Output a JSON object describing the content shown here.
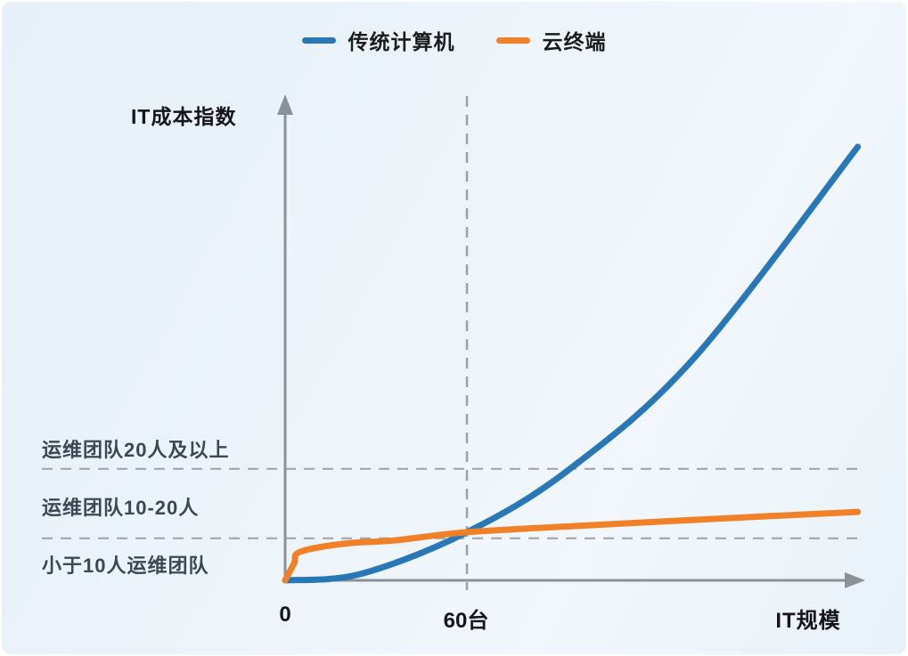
{
  "chart_data": {
    "type": "line",
    "title": "",
    "xlabel": "IT规模",
    "ylabel": "IT成本指数",
    "x_unit": "台",
    "x_ticks": [
      {
        "value": 0,
        "label": "0"
      },
      {
        "value": 60,
        "label": "60台"
      }
    ],
    "ylim": [
      0,
      100
    ],
    "xlim": [
      0,
      189
    ],
    "grid": "dashed-guides-only",
    "legend_position": "top-center",
    "series": [
      {
        "name": "传统计算机",
        "color": "#2878b8",
        "points": [
          [
            0,
            0
          ],
          [
            25,
            1.5
          ],
          [
            60,
            11.1
          ],
          [
            94,
            25.7
          ],
          [
            135,
            51.3
          ],
          [
            189,
            100
          ]
        ]
      },
      {
        "name": "云终端",
        "color": "#f08128",
        "points": [
          [
            0,
            0
          ],
          [
            3,
            4
          ],
          [
            5,
            6.6
          ],
          [
            20,
            8.5
          ],
          [
            36,
            9.2
          ],
          [
            60,
            11.1
          ],
          [
            100,
            12.7
          ],
          [
            145,
            14.3
          ],
          [
            189,
            15.8
          ]
        ]
      }
    ],
    "guides": {
      "horizontal": [
        {
          "y": 25.7
        },
        {
          "y": 9.7
        }
      ],
      "vertical": {
        "x": 60
      }
    },
    "zone_labels": [
      "运维团队20人及以上",
      "运维团队10-20人",
      "小于10人运维团队"
    ],
    "annotations_note": "curves intersect at x = 60台 on the vertical dashed guide",
    "colors": {
      "axis": "#8b9197",
      "guide": "#9ba1a7",
      "background_top": "#e7f0f8",
      "background_bottom": "#e9f2f9",
      "text_dark": "#15151b",
      "text_zone": "#3a4754"
    }
  }
}
